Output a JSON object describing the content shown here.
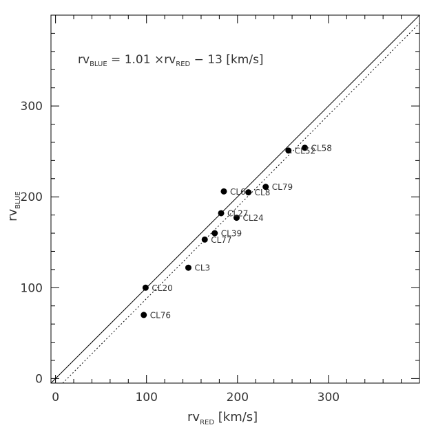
{
  "chart_data": {
    "type": "scatter",
    "title": "",
    "equation": {
      "lhs": "rv",
      "lhs_sub": "BLUE",
      "middle": " = 1.01 ×rv",
      "middle_sub": "RED",
      "rhs": " − 13 [km/s]"
    },
    "xlabel": {
      "main": "rv",
      "sub": "RED",
      "unit": " [km/s]"
    },
    "ylabel": {
      "main": "rv",
      "sub": "BLUE"
    },
    "xlim": [
      -5,
      400
    ],
    "ylim": [
      -5,
      400
    ],
    "xticks": [
      0,
      100,
      200,
      300
    ],
    "yticks": [
      0,
      100,
      200,
      300
    ],
    "lines": [
      {
        "style": "solid",
        "slope": 1.0,
        "intercept": 0
      },
      {
        "style": "dotted",
        "slope": 1.01,
        "intercept": -13
      }
    ],
    "points": [
      {
        "label": "CL58",
        "x": 274,
        "y": 254
      },
      {
        "label": "CL52",
        "x": 256,
        "y": 251
      },
      {
        "label": "CL79",
        "x": 231,
        "y": 211
      },
      {
        "label": "CL6",
        "x": 185,
        "y": 206
      },
      {
        "label": "CL8",
        "x": 212,
        "y": 205
      },
      {
        "label": "CL27",
        "x": 182,
        "y": 182
      },
      {
        "label": "CL24",
        "x": 199,
        "y": 177
      },
      {
        "label": "CL39",
        "x": 175,
        "y": 160
      },
      {
        "label": "CL77",
        "x": 164,
        "y": 153
      },
      {
        "label": "CL3",
        "x": 146,
        "y": 122
      },
      {
        "label": "CL20",
        "x": 99,
        "y": 100
      },
      {
        "label": "CL76",
        "x": 97,
        "y": 70
      }
    ]
  }
}
